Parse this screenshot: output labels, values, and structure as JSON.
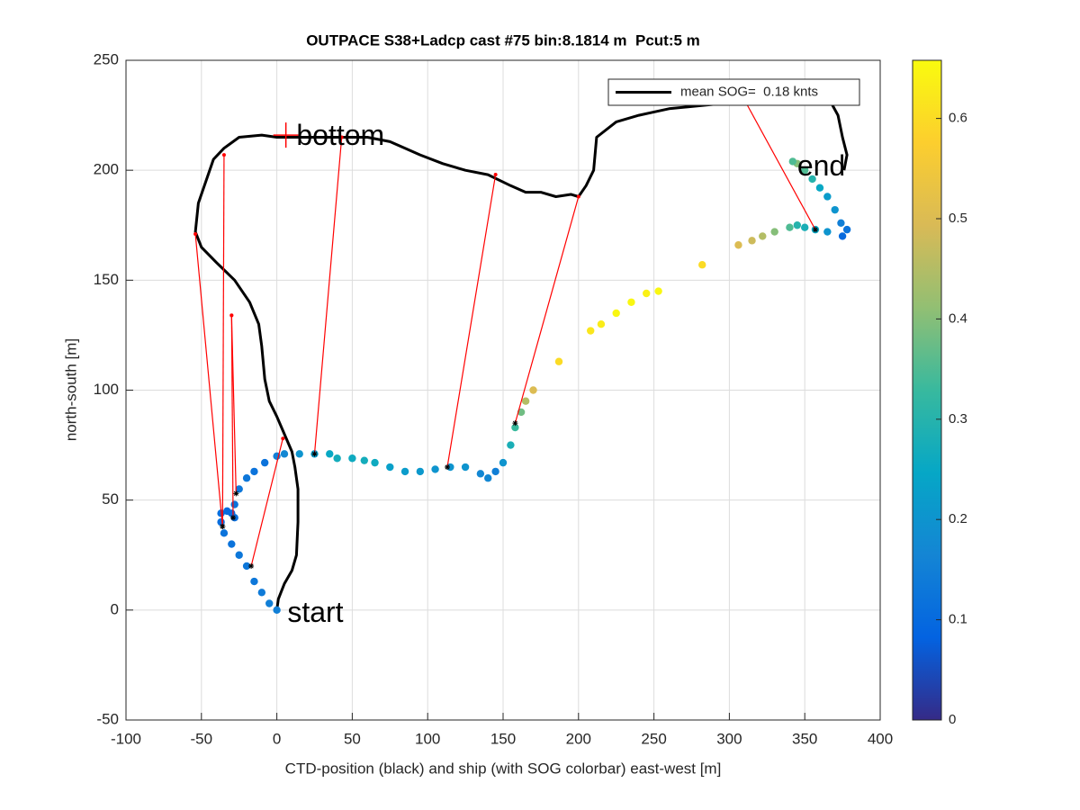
{
  "chart_data": {
    "type": "scatter",
    "title": "OUTPACE S38+Ladcp cast #75 bin:8.1814 m  Pcut:5 m",
    "xlabel": "CTD-position (black) and ship (with SOG colorbar) east-west [m]",
    "ylabel": "north-south [m]",
    "xlim": [
      -100,
      400
    ],
    "ylim": [
      -50,
      250
    ],
    "xticks": [
      -100,
      -50,
      0,
      50,
      100,
      150,
      200,
      250,
      300,
      350,
      400
    ],
    "yticks": [
      -50,
      0,
      50,
      100,
      150,
      200,
      250
    ],
    "grid": true,
    "legend": "northeast",
    "colormap": "parula",
    "clim": [
      0,
      0.658
    ],
    "cticks": [
      0,
      0.1,
      0.2,
      0.3,
      0.4,
      0.5,
      0.6
    ],
    "series": [
      {
        "name": "mean SOG=  0.18 knts",
        "color": "#000000",
        "x": [
          0,
          1,
          5,
          10,
          13,
          14,
          14,
          12,
          10,
          5,
          0,
          -5,
          -8,
          -10,
          -12,
          -18,
          -28,
          -40,
          -50,
          -54,
          -52,
          -47,
          -42,
          -35,
          -25,
          -10,
          0,
          20,
          40,
          60,
          75,
          85,
          95,
          110,
          125,
          140,
          155,
          165,
          175,
          185,
          195,
          200,
          205,
          210,
          212,
          225,
          240,
          260,
          290,
          310,
          330,
          345,
          355,
          368,
          372,
          375,
          378,
          376
        ],
        "y": [
          0,
          5,
          12,
          18,
          25,
          40,
          55,
          65,
          72,
          80,
          88,
          95,
          105,
          120,
          130,
          140,
          150,
          158,
          165,
          172,
          185,
          195,
          205,
          210,
          215,
          216,
          215,
          215,
          215,
          215,
          213,
          210,
          207,
          203,
          200,
          198,
          193,
          190,
          190,
          188,
          189,
          188,
          193,
          200,
          215,
          222,
          225,
          228,
          230,
          232,
          232,
          232,
          232,
          230,
          225,
          215,
          207,
          200
        ]
      },
      {
        "x": [
          0,
          -5,
          -10,
          -15,
          -20,
          -25,
          -30,
          -35,
          -37,
          -37,
          -33,
          -30,
          -28,
          -28,
          -25,
          -20,
          -15,
          -8,
          0,
          5,
          15,
          25,
          35,
          40,
          50,
          58,
          65,
          75,
          85,
          95,
          105,
          115,
          125,
          135,
          140,
          145,
          150,
          155,
          158,
          162,
          165,
          170,
          187,
          208,
          215,
          225,
          235,
          245,
          253,
          282,
          306,
          315,
          322,
          330,
          340,
          345,
          350,
          357,
          365,
          375,
          378,
          374,
          370,
          365,
          360,
          355,
          350,
          345,
          342
        ],
        "y": [
          0,
          3,
          8,
          13,
          20,
          25,
          30,
          35,
          40,
          44,
          45,
          44,
          42,
          48,
          55,
          60,
          63,
          67,
          70,
          71,
          71,
          71,
          71,
          69,
          69,
          68,
          67,
          65,
          63,
          63,
          64,
          65,
          65,
          62,
          60,
          63,
          67,
          75,
          83,
          90,
          95,
          100,
          113,
          127,
          130,
          135,
          140,
          144,
          145,
          157,
          166,
          168,
          170,
          172,
          174,
          175,
          174,
          173,
          172,
          170,
          173,
          176,
          182,
          188,
          192,
          196,
          200,
          203,
          204
        ],
        "values": [
          0.15,
          0.15,
          0.14,
          0.13,
          0.13,
          0.13,
          0.12,
          0.12,
          0.11,
          0.11,
          0.1,
          0.1,
          0.11,
          0.12,
          0.13,
          0.13,
          0.12,
          0.12,
          0.15,
          0.17,
          0.2,
          0.22,
          0.25,
          0.27,
          0.26,
          0.27,
          0.26,
          0.23,
          0.22,
          0.21,
          0.2,
          0.2,
          0.2,
          0.17,
          0.17,
          0.15,
          0.2,
          0.28,
          0.33,
          0.38,
          0.45,
          0.5,
          0.6,
          0.62,
          0.63,
          0.65,
          0.65,
          0.64,
          0.65,
          0.6,
          0.5,
          0.48,
          0.45,
          0.4,
          0.35,
          0.3,
          0.28,
          0.25,
          0.2,
          0.1,
          0.12,
          0.15,
          0.2,
          0.22,
          0.25,
          0.3,
          0.35,
          0.4,
          0.35
        ]
      }
    ],
    "links": [
      {
        "x": [
          -17,
          4
        ],
        "y": [
          20,
          78
        ]
      },
      {
        "x": [
          -36,
          -54
        ],
        "y": [
          38,
          171
        ]
      },
      {
        "x": [
          -36,
          -35
        ],
        "y": [
          38,
          207
        ]
      },
      {
        "x": [
          -29,
          -30
        ],
        "y": [
          42,
          134
        ]
      },
      {
        "x": [
          -27,
          -30
        ],
        "y": [
          53,
          134
        ]
      },
      {
        "x": [
          25,
          43
        ],
        "y": [
          71,
          215
        ]
      },
      {
        "x": [
          113,
          145
        ],
        "y": [
          65,
          198
        ]
      },
      {
        "x": [
          158,
          200
        ],
        "y": [
          85,
          188
        ]
      },
      {
        "x": [
          357,
          310
        ],
        "y": [
          173,
          232
        ]
      }
    ],
    "link_color": "#ff0000",
    "markers": [
      {
        "x": 6,
        "y": 216,
        "color": "#ff0000"
      }
    ],
    "annotations": [
      {
        "text": "start",
        "x": 7,
        "y": -2
      },
      {
        "text": "bottom",
        "x": 13,
        "y": 215
      },
      {
        "text": "end",
        "x": 345,
        "y": 201
      }
    ]
  }
}
